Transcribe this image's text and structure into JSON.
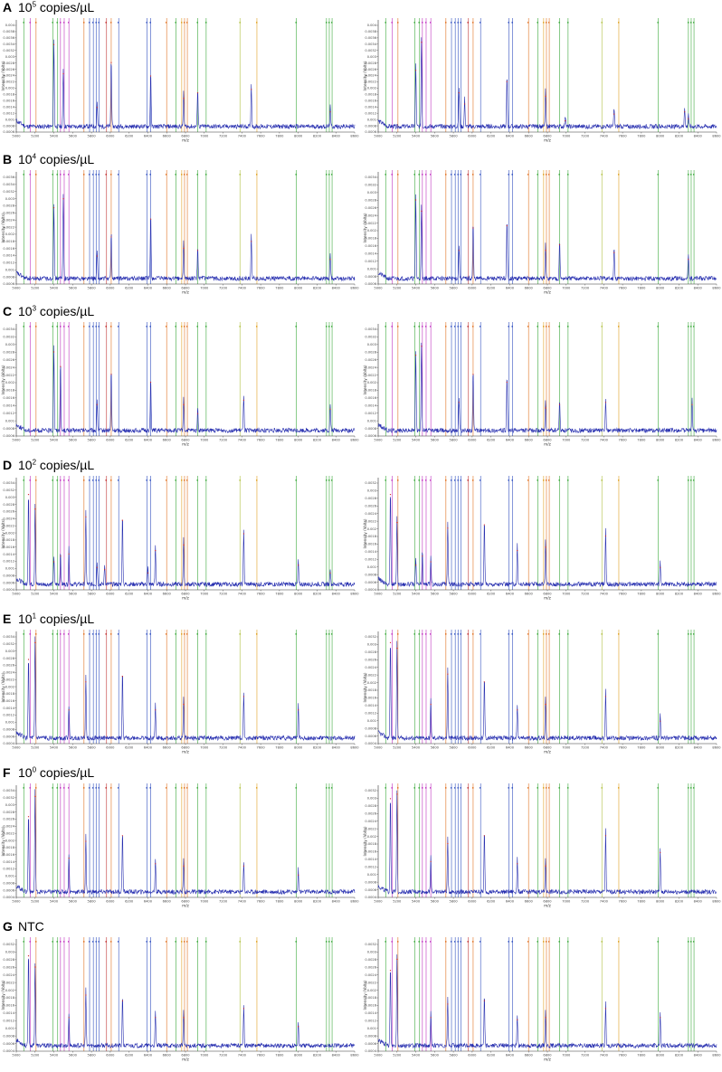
{
  "panels": [
    {
      "letter": "A",
      "base": "10",
      "exp": "5",
      "unit": "copies/µL",
      "spectra": [
        {
          "yticks": [
            "0.0006",
            "0.0008",
            "0.001",
            "0.0012",
            "0.0014",
            "0.0016",
            "0.0018",
            "0.002",
            "0.0022",
            "0.0024",
            "0.0026",
            "0.0028",
            "0.003",
            "0.0032",
            "0.0034",
            "0.0036",
            "0.0038",
            "0.004"
          ],
          "peaks": [
            [
              5400,
              0.78
            ],
            [
              5500,
              0.52
            ],
            [
              5860,
              0.22
            ],
            [
              6010,
              0.62
            ],
            [
              6430,
              0.5
            ],
            [
              6780,
              0.3
            ],
            [
              6930,
              0.35
            ],
            [
              7500,
              0.38
            ],
            [
              8340,
              0.18
            ]
          ]
        },
        {
          "yticks": [
            "0.0006",
            "0.0008",
            "0.001",
            "0.0012",
            "0.0014",
            "0.0016",
            "0.0018",
            "0.002",
            "0.0022",
            "0.0024",
            "0.0026",
            "0.0028",
            "0.003",
            "0.0032",
            "0.0034",
            "0.0036",
            "0.0038",
            "0.004"
          ],
          "peaks": [
            [
              5400,
              0.55
            ],
            [
              5460,
              0.8
            ],
            [
              5860,
              0.35
            ],
            [
              5920,
              0.25
            ],
            [
              6370,
              0.45
            ],
            [
              6780,
              0.32
            ],
            [
              6990,
              0.1
            ],
            [
              7510,
              0.16
            ],
            [
              8260,
              0.18
            ],
            [
              8300,
              0.12
            ]
          ]
        }
      ]
    },
    {
      "letter": "B",
      "base": "10",
      "exp": "4",
      "unit": "copies/µL",
      "spectra": [
        {
          "yticks": [
            "0.0006",
            "0.0008",
            "0.001",
            "0.0012",
            "0.0014",
            "0.0016",
            "0.0018",
            "0.002",
            "0.0022",
            "0.0024",
            "0.0026",
            "0.0028",
            "0.003",
            "0.0032",
            "0.0034",
            "0.0036"
          ],
          "peaks": [
            [
              5400,
              0.68
            ],
            [
              5500,
              0.76
            ],
            [
              5860,
              0.25
            ],
            [
              6010,
              0.42
            ],
            [
              6430,
              0.58
            ],
            [
              6780,
              0.32
            ],
            [
              6930,
              0.3
            ],
            [
              7500,
              0.38
            ],
            [
              8340,
              0.22
            ]
          ]
        },
        {
          "yticks": [
            "0.0006",
            "0.0008",
            "0.001",
            "0.0012",
            "0.0014",
            "0.0016",
            "0.0018",
            "0.002",
            "0.0022",
            "0.0024",
            "0.0026",
            "0.0028",
            "0.003",
            "0.0032",
            "0.0034"
          ],
          "peaks": [
            [
              5400,
              0.75
            ],
            [
              5460,
              0.65
            ],
            [
              5860,
              0.3
            ],
            [
              6010,
              0.5
            ],
            [
              6370,
              0.52
            ],
            [
              6780,
              0.3
            ],
            [
              6930,
              0.35
            ],
            [
              7510,
              0.28
            ],
            [
              8300,
              0.22
            ]
          ]
        }
      ]
    },
    {
      "letter": "C",
      "base": "10",
      "exp": "3",
      "unit": "copies/µL",
      "spectra": [
        {
          "yticks": [
            "0.0006",
            "0.0008",
            "0.001",
            "0.0012",
            "0.0014",
            "0.0016",
            "0.0018",
            "0.002",
            "0.0022",
            "0.0024",
            "0.0026",
            "0.0028",
            "0.003",
            "0.0032",
            "0.0034"
          ],
          "peaks": [
            [
              5400,
              0.75
            ],
            [
              5470,
              0.62
            ],
            [
              5860,
              0.28
            ],
            [
              6010,
              0.55
            ],
            [
              6430,
              0.48
            ],
            [
              6780,
              0.28
            ],
            [
              6930,
              0.2
            ],
            [
              7420,
              0.32
            ],
            [
              8340,
              0.24
            ]
          ]
        },
        {
          "yticks": [
            "0.0006",
            "0.0008",
            "0.001",
            "0.0012",
            "0.0014",
            "0.0016",
            "0.0018",
            "0.002",
            "0.0022",
            "0.0024",
            "0.0026",
            "0.0028",
            "0.003",
            "0.0032",
            "0.0034"
          ],
          "peaks": [
            [
              5400,
              0.72
            ],
            [
              5460,
              0.8
            ],
            [
              5860,
              0.3
            ],
            [
              6010,
              0.55
            ],
            [
              6370,
              0.48
            ],
            [
              6780,
              0.25
            ],
            [
              6930,
              0.28
            ],
            [
              7420,
              0.3
            ],
            [
              8340,
              0.28
            ]
          ]
        }
      ]
    },
    {
      "letter": "D",
      "base": "10",
      "exp": "2",
      "unit": "copies/µL",
      "spectra": [
        {
          "yticks": [
            "0.0004",
            "0.0006",
            "0.0008",
            "0.001",
            "0.0012",
            "0.0014",
            "0.0016",
            "0.0018",
            "0.002",
            "0.0022",
            "0.0024",
            "0.0026",
            "0.0028",
            "0.003",
            "0.0032",
            "0.0034"
          ],
          "peaks": [
            [
              5130,
              0.85
            ],
            [
              5200,
              0.72
            ],
            [
              5400,
              0.25
            ],
            [
              5470,
              0.3
            ],
            [
              5560,
              0.32
            ],
            [
              5740,
              0.65
            ],
            [
              5860,
              0.2
            ],
            [
              5940,
              0.18
            ],
            [
              6130,
              0.62
            ],
            [
              6400,
              0.15
            ],
            [
              6480,
              0.35
            ],
            [
              6780,
              0.4
            ],
            [
              7420,
              0.5
            ],
            [
              8000,
              0.22
            ],
            [
              8340,
              0.15
            ]
          ]
        },
        {
          "yticks": [
            "0.0004",
            "0.0006",
            "0.0008",
            "0.001",
            "0.0012",
            "0.0014",
            "0.0016",
            "0.0018",
            "0.002",
            "0.0022",
            "0.0024",
            "0.0026",
            "0.0028",
            "0.003",
            "0.0032"
          ],
          "peaks": [
            [
              5130,
              0.85
            ],
            [
              5200,
              0.6
            ],
            [
              5400,
              0.22
            ],
            [
              5470,
              0.3
            ],
            [
              5560,
              0.25
            ],
            [
              5740,
              0.55
            ],
            [
              6130,
              0.58
            ],
            [
              6480,
              0.35
            ],
            [
              6780,
              0.38
            ],
            [
              7420,
              0.48
            ],
            [
              8000,
              0.2
            ]
          ]
        }
      ]
    },
    {
      "letter": "E",
      "base": "10",
      "exp": "1",
      "unit": "copies/µL",
      "spectra": [
        {
          "yticks": [
            "0.0004",
            "0.0006",
            "0.0008",
            "0.001",
            "0.0012",
            "0.0014",
            "0.0016",
            "0.0018",
            "0.002",
            "0.0022",
            "0.0024",
            "0.0026",
            "0.0028",
            "0.003",
            "0.0032",
            "0.0034"
          ],
          "peaks": [
            [
              5130,
              0.75
            ],
            [
              5200,
              0.9
            ],
            [
              5560,
              0.3
            ],
            [
              5740,
              0.55
            ],
            [
              6130,
              0.6
            ],
            [
              6480,
              0.3
            ],
            [
              6780,
              0.35
            ],
            [
              7420,
              0.42
            ],
            [
              8000,
              0.3
            ]
          ]
        },
        {
          "yticks": [
            "0.0004",
            "0.0006",
            "0.0008",
            "0.001",
            "0.0012",
            "0.0014",
            "0.0016",
            "0.0018",
            "0.002",
            "0.0022",
            "0.0024",
            "0.0026",
            "0.0028",
            "0.003",
            "0.0032"
          ],
          "peaks": [
            [
              5130,
              0.9
            ],
            [
              5200,
              0.85
            ],
            [
              5560,
              0.35
            ],
            [
              5740,
              0.62
            ],
            [
              6130,
              0.55
            ],
            [
              6480,
              0.3
            ],
            [
              6780,
              0.35
            ],
            [
              7420,
              0.42
            ],
            [
              8000,
              0.2
            ]
          ]
        }
      ]
    },
    {
      "letter": "F",
      "base": "10",
      "exp": "0",
      "unit": "copies/µL",
      "spectra": [
        {
          "yticks": [
            "0.0004",
            "0.0006",
            "0.0008",
            "0.001",
            "0.0012",
            "0.0014",
            "0.0016",
            "0.0018",
            "0.002",
            "0.0022",
            "0.0024",
            "0.0026",
            "0.0028",
            "0.003",
            "0.0032",
            "0.0034"
          ],
          "peaks": [
            [
              5130,
              0.72
            ],
            [
              5200,
              0.9
            ],
            [
              5560,
              0.35
            ],
            [
              5740,
              0.5
            ],
            [
              6130,
              0.55
            ],
            [
              6480,
              0.3
            ],
            [
              6780,
              0.28
            ],
            [
              7420,
              0.28
            ],
            [
              8000,
              0.2
            ]
          ]
        },
        {
          "yticks": [
            "0.0004",
            "0.0006",
            "0.0008",
            "0.001",
            "0.0012",
            "0.0014",
            "0.0016",
            "0.0018",
            "0.002",
            "0.0022",
            "0.0024",
            "0.0026",
            "0.0028",
            "0.003",
            "0.0032"
          ],
          "peaks": [
            [
              5130,
              0.88
            ],
            [
              5200,
              0.92
            ],
            [
              5560,
              0.32
            ],
            [
              5740,
              0.48
            ],
            [
              6130,
              0.55
            ],
            [
              6480,
              0.3
            ],
            [
              6780,
              0.28
            ],
            [
              7420,
              0.55
            ],
            [
              8000,
              0.4
            ]
          ]
        }
      ]
    },
    {
      "letter": "G",
      "base": "",
      "exp": "",
      "unit": "NTC",
      "spectra": [
        {
          "yticks": [
            "0.0004",
            "0.0006",
            "0.0008",
            "0.001",
            "0.0012",
            "0.0014",
            "0.0016",
            "0.0018",
            "0.002",
            "0.0022",
            "0.0024",
            "0.0026",
            "0.0028",
            "0.003",
            "0.0032"
          ],
          "peaks": [
            [
              5130,
              0.85
            ],
            [
              5200,
              0.75
            ],
            [
              5560,
              0.3
            ],
            [
              5740,
              0.5
            ],
            [
              6130,
              0.45
            ],
            [
              6480,
              0.3
            ],
            [
              6780,
              0.3
            ],
            [
              7420,
              0.38
            ],
            [
              8000,
              0.22
            ]
          ]
        },
        {
          "yticks": [
            "0.0004",
            "0.0006",
            "0.0008",
            "0.001",
            "0.0012",
            "0.0014",
            "0.0016",
            "0.0018",
            "0.002",
            "0.0022",
            "0.0024",
            "0.0026",
            "0.0028",
            "0.003",
            "0.0032"
          ],
          "peaks": [
            [
              5130,
              0.72
            ],
            [
              5200,
              0.82
            ],
            [
              5560,
              0.3
            ],
            [
              5740,
              0.42
            ],
            [
              6130,
              0.45
            ],
            [
              6480,
              0.28
            ],
            [
              6780,
              0.3
            ],
            [
              7420,
              0.38
            ],
            [
              8000,
              0.3
            ]
          ]
        }
      ]
    }
  ],
  "axes": {
    "xlabel": "m/z",
    "ylabel": "Intensity (Volts)",
    "xticks": [
      "5000",
      "5200",
      "5400",
      "5600",
      "5800",
      "6000",
      "6200",
      "6400",
      "6600",
      "6800",
      "7000",
      "7200",
      "7400",
      "7600",
      "7800",
      "8000",
      "8200",
      "8400",
      "8600"
    ],
    "xlim": [
      5000,
      8600
    ]
  },
  "markers": [
    {
      "mz": 5080,
      "color": "#3aa83a"
    },
    {
      "mz": 5150,
      "color": "#c030c0"
    },
    {
      "mz": 5210,
      "color": "#e07020"
    },
    {
      "mz": 5390,
      "color": "#3aa83a"
    },
    {
      "mz": 5440,
      "color": "#3aa83a"
    },
    {
      "mz": 5470,
      "color": "#c030c0"
    },
    {
      "mz": 5510,
      "color": "#c030c0"
    },
    {
      "mz": 5560,
      "color": "#c030c0"
    },
    {
      "mz": 5720,
      "color": "#e07020"
    },
    {
      "mz": 5780,
      "color": "#3050c0"
    },
    {
      "mz": 5820,
      "color": "#3050c0"
    },
    {
      "mz": 5850,
      "color": "#3050c0"
    },
    {
      "mz": 5880,
      "color": "#3050c0"
    },
    {
      "mz": 5960,
      "color": "#c03030"
    },
    {
      "mz": 6010,
      "color": "#e07020"
    },
    {
      "mz": 6090,
      "color": "#3050c0"
    },
    {
      "mz": 6390,
      "color": "#3050c0"
    },
    {
      "mz": 6430,
      "color": "#3050c0"
    },
    {
      "mz": 6600,
      "color": "#e07020"
    },
    {
      "mz": 6700,
      "color": "#3aa83a"
    },
    {
      "mz": 6760,
      "color": "#e0a020"
    },
    {
      "mz": 6790,
      "color": "#e07020"
    },
    {
      "mz": 6820,
      "color": "#e07020"
    },
    {
      "mz": 6930,
      "color": "#3aa83a"
    },
    {
      "mz": 7020,
      "color": "#3aa83a"
    },
    {
      "mz": 7380,
      "color": "#b0c040"
    },
    {
      "mz": 7560,
      "color": "#e0a020"
    },
    {
      "mz": 7980,
      "color": "#3aa83a"
    },
    {
      "mz": 8300,
      "color": "#3aa83a"
    },
    {
      "mz": 8330,
      "color": "#3aa83a"
    },
    {
      "mz": 8360,
      "color": "#3aa83a"
    }
  ],
  "colors": {
    "spectrum": "#2830b0",
    "peak_label": "#d02020",
    "axis": "#333333"
  },
  "chart_data": [
    {
      "type": "line",
      "title": "10^5 copies/µL",
      "xlabel": "m/z",
      "ylabel": "Intensity (Volts)",
      "xlim": [
        5000,
        8600
      ],
      "ylim": [
        0.0006,
        0.004
      ]
    },
    {
      "type": "line",
      "title": "10^4 copies/µL",
      "xlabel": "m/z",
      "ylabel": "Intensity (Volts)",
      "xlim": [
        5000,
        8600
      ],
      "ylim": [
        0.0006,
        0.0036
      ]
    },
    {
      "type": "line",
      "title": "10^3 copies/µL",
      "xlabel": "m/z",
      "ylabel": "Intensity (Volts)",
      "xlim": [
        5000,
        8600
      ],
      "ylim": [
        0.0006,
        0.0034
      ]
    },
    {
      "type": "line",
      "title": "10^2 copies/µL",
      "xlabel": "m/z",
      "ylabel": "Intensity (Volts)",
      "xlim": [
        5000,
        8600
      ],
      "ylim": [
        0.0004,
        0.0034
      ]
    },
    {
      "type": "line",
      "title": "10^1 copies/µL",
      "xlabel": "m/z",
      "ylabel": "Intensity (Volts)",
      "xlim": [
        5000,
        8600
      ],
      "ylim": [
        0.0004,
        0.0034
      ]
    },
    {
      "type": "line",
      "title": "10^0 copies/µL",
      "xlabel": "m/z",
      "ylabel": "Intensity (Volts)",
      "xlim": [
        5000,
        8600
      ],
      "ylim": [
        0.0004,
        0.0034
      ]
    },
    {
      "type": "line",
      "title": "NTC",
      "xlabel": "m/z",
      "ylabel": "Intensity (Volts)",
      "xlim": [
        5000,
        8600
      ],
      "ylim": [
        0.0004,
        0.0032
      ]
    }
  ]
}
